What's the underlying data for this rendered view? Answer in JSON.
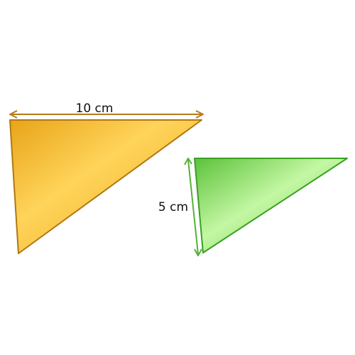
{
  "shapes": [
    {
      "name": "orange-triangle",
      "side_label": "10 cm",
      "fill_light": "#ffd45a",
      "fill_dark": "#e8a418",
      "stroke": "#b07812",
      "arrow_color": "#b57a1a"
    },
    {
      "name": "green-triangle",
      "side_label": "5 cm",
      "fill_light": "#c4f7a4",
      "fill_dark": "#5cc23a",
      "stroke": "#3aa023",
      "arrow_color": "#55b236"
    }
  ]
}
